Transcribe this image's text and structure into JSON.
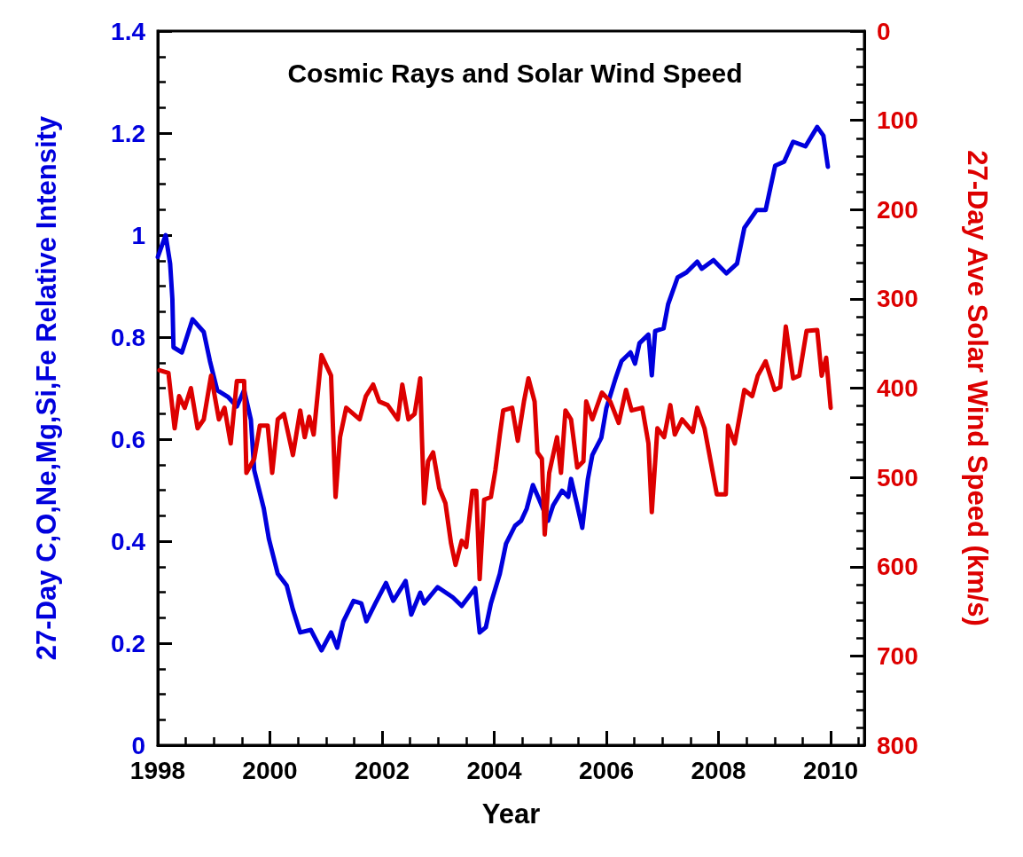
{
  "chart_data": {
    "type": "line",
    "title": "Cosmic Rays and Solar Wind Speed",
    "xlabel": "Year",
    "ylabel": "27-Day C,O,Ne,Mg,Si,Fe Relative Intensity",
    "y2label": "27-Day Ave Solar Wind Speed (km/s)",
    "xlim": [
      1998,
      2010.6
    ],
    "xticks": [
      1998,
      2000,
      2002,
      2004,
      2006,
      2008,
      2010
    ],
    "ylim": [
      0,
      1.4
    ],
    "yticks": [
      0,
      0.2,
      0.4,
      0.6,
      0.8,
      1,
      1.2,
      1.4
    ],
    "y2lim": [
      800,
      0
    ],
    "y2ticks": [
      0,
      100,
      200,
      300,
      400,
      500,
      600,
      700,
      800
    ],
    "grid": false,
    "marker": "none",
    "line_style": "solid",
    "series": [
      {
        "color": "#0000dd",
        "x": [
          1998.0,
          1998.14,
          1998.22,
          1998.26,
          1998.28,
          1998.43,
          1998.62,
          1998.82,
          1998.93,
          1999.06,
          1999.25,
          1999.41,
          1999.54,
          1999.66,
          1999.72,
          1999.89,
          1999.98,
          2000.14,
          2000.3,
          2000.41,
          2000.54,
          2000.73,
          2000.92,
          2001.09,
          2001.2,
          2001.31,
          2001.49,
          2001.63,
          2001.72,
          2001.88,
          2002.07,
          2002.2,
          2002.42,
          2002.52,
          2002.68,
          2002.75,
          2002.99,
          2003.26,
          2003.42,
          2003.66,
          2003.74,
          2003.85,
          2003.94,
          2004.1,
          2004.21,
          2004.37,
          2004.48,
          2004.58,
          2004.69,
          2004.8,
          2004.96,
          2005.05,
          2005.21,
          2005.32,
          2005.37,
          2005.48,
          2005.57,
          2005.67,
          2005.75,
          2005.91,
          2006.0,
          2006.16,
          2006.27,
          2006.43,
          2006.51,
          2006.59,
          2006.75,
          2006.81,
          2006.87,
          2007.02,
          2007.1,
          2007.27,
          2007.43,
          2007.62,
          2007.7,
          2007.91,
          2008.14,
          2008.33,
          2008.46,
          2008.68,
          2008.84,
          2009.01,
          2009.17,
          2009.33,
          2009.55,
          2009.76,
          2009.87,
          2009.95
        ],
        "values": [
          0.957,
          1.0,
          0.944,
          0.875,
          0.78,
          0.77,
          0.835,
          0.81,
          0.753,
          0.696,
          0.683,
          0.664,
          0.696,
          0.638,
          0.539,
          0.464,
          0.405,
          0.336,
          0.313,
          0.266,
          0.221,
          0.226,
          0.186,
          0.221,
          0.191,
          0.243,
          0.283,
          0.278,
          0.243,
          0.278,
          0.318,
          0.283,
          0.322,
          0.256,
          0.299,
          0.278,
          0.31,
          0.29,
          0.273,
          0.308,
          0.221,
          0.231,
          0.278,
          0.336,
          0.395,
          0.43,
          0.44,
          0.464,
          0.51,
          0.482,
          0.44,
          0.47,
          0.499,
          0.487,
          0.522,
          0.47,
          0.426,
          0.522,
          0.569,
          0.603,
          0.661,
          0.718,
          0.753,
          0.77,
          0.748,
          0.788,
          0.805,
          0.725,
          0.812,
          0.817,
          0.864,
          0.917,
          0.927,
          0.948,
          0.934,
          0.951,
          0.925,
          0.944,
          1.014,
          1.049,
          1.049,
          1.136,
          1.144,
          1.183,
          1.174,
          1.212,
          1.195,
          1.134
        ]
      },
      {
        "color": "#dd0000",
        "axis": "y2",
        "x": [
          1998.03,
          1998.19,
          1998.3,
          1998.38,
          1998.48,
          1998.59,
          1998.71,
          1998.82,
          1998.95,
          1999.09,
          1999.19,
          1999.3,
          1999.41,
          1999.54,
          1999.58,
          1999.72,
          1999.82,
          1999.96,
          2000.04,
          2000.14,
          2000.25,
          2000.41,
          2000.54,
          2000.62,
          2000.7,
          2000.78,
          2000.92,
          2001.09,
          2001.17,
          2001.25,
          2001.36,
          2001.6,
          2001.71,
          2001.84,
          2001.95,
          2002.1,
          2002.28,
          2002.36,
          2002.47,
          2002.58,
          2002.68,
          2002.71,
          2002.75,
          2002.82,
          2002.91,
          2003.02,
          2003.13,
          2003.23,
          2003.31,
          2003.42,
          2003.5,
          2003.61,
          2003.68,
          2003.74,
          2003.82,
          2003.94,
          2004.02,
          2004.1,
          2004.16,
          2004.32,
          2004.42,
          2004.53,
          2004.61,
          2004.72,
          2004.77,
          2004.85,
          2004.9,
          2004.98,
          2005.12,
          2005.19,
          2005.27,
          2005.37,
          2005.48,
          2005.59,
          2005.64,
          2005.75,
          2005.92,
          2006.07,
          2006.22,
          2006.35,
          2006.45,
          2006.64,
          2006.75,
          2006.81,
          2006.91,
          2007.03,
          2007.14,
          2007.22,
          2007.35,
          2007.54,
          2007.62,
          2007.75,
          2007.97,
          2008.13,
          2008.17,
          2008.29,
          2008.46,
          2008.6,
          2008.7,
          2008.84,
          2009.0,
          2009.1,
          2009.2,
          2009.33,
          2009.44,
          2009.57,
          2009.76,
          2009.84,
          2009.92,
          2010.0
        ],
        "values": [
          380,
          383,
          445,
          409,
          422,
          400,
          445,
          435,
          386,
          435,
          422,
          462,
          392,
          392,
          495,
          479,
          442,
          442,
          495,
          435,
          429,
          475,
          425,
          455,
          432,
          452,
          363,
          386,
          522,
          455,
          422,
          435,
          409,
          396,
          415,
          419,
          435,
          396,
          435,
          429,
          389,
          455,
          529,
          482,
          472,
          512,
          529,
          574,
          598,
          571,
          578,
          515,
          515,
          614,
          525,
          522,
          492,
          452,
          425,
          422,
          459,
          415,
          389,
          415,
          472,
          479,
          564,
          495,
          455,
          495,
          425,
          435,
          489,
          482,
          415,
          435,
          405,
          415,
          439,
          402,
          425,
          422,
          462,
          539,
          445,
          455,
          419,
          452,
          435,
          449,
          422,
          445,
          519,
          519,
          442,
          462,
          402,
          409,
          386,
          370,
          402,
          399,
          331,
          389,
          386,
          336,
          335,
          386,
          366,
          422
        ]
      }
    ]
  }
}
